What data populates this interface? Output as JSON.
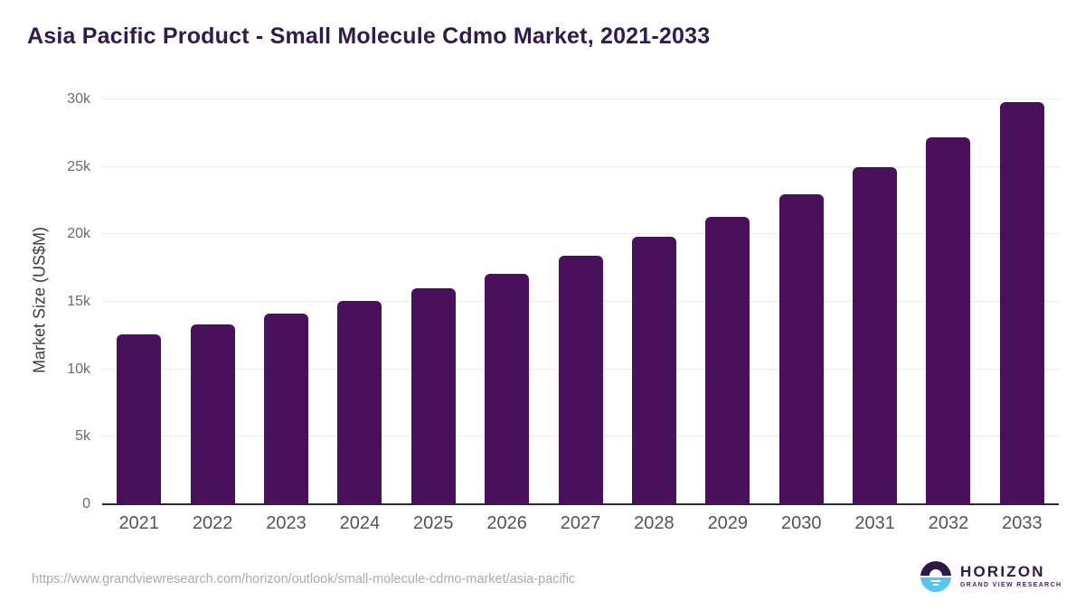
{
  "title": "Asia Pacific Product - Small Molecule Cdmo Market, 2021-2033",
  "footer": {
    "source_url": "https://www.grandviewresearch.com/horizon/outlook/small-molecule-cdmo-market/asia-pacific",
    "logo": {
      "name": "HORIZON",
      "subtitle": "GRAND VIEW RESEARCH"
    }
  },
  "colors": {
    "bar": "#49115C",
    "title": "#2F1B4C",
    "grid": "#ebebeb",
    "axis_line": "#2b2b2b",
    "y_tick": "#6b6b6b",
    "x_tick": "#545454",
    "y_title": "#3d3d3d",
    "url": "#ababab",
    "logo_dark": "#2E1A47",
    "logo_blue": "#58C4F0",
    "logo_subtitle": "#40265c"
  },
  "chart_data": {
    "type": "bar",
    "title": "Asia Pacific Product - Small Molecule Cdmo Market, 2021-2033",
    "categories": [
      "2021",
      "2022",
      "2023",
      "2024",
      "2025",
      "2026",
      "2027",
      "2028",
      "2029",
      "2030",
      "2031",
      "2032",
      "2033"
    ],
    "values": [
      12600,
      13300,
      14100,
      15100,
      16000,
      17100,
      18400,
      19800,
      21300,
      23000,
      25000,
      27200,
      29800
    ],
    "unit": "US$M",
    "xlabel": "",
    "ylabel": "Market Size (US$M)",
    "ylim": [
      0,
      30000
    ],
    "yticks": [
      0,
      5000,
      10000,
      15000,
      20000,
      25000,
      30000
    ],
    "ytick_labels": [
      "0",
      "5k",
      "10k",
      "15k",
      "20k",
      "25k",
      "30k"
    ],
    "grid": "horizontal",
    "legend": false,
    "bar_color": "#49115C"
  }
}
